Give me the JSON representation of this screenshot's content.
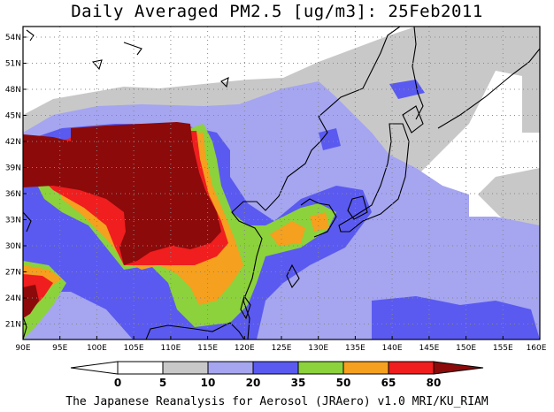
{
  "title": "Daily Averaged PM2.5 [ug/m3]: 25Feb2011",
  "footer": "The Japanese Reanalysis for Aerosol (JRAero) v1.0 MRI/KU_RIAM",
  "map": {
    "lon_labels": [
      "90E",
      "95E",
      "100E",
      "105E",
      "110E",
      "115E",
      "120E",
      "125E",
      "130E",
      "135E",
      "140E",
      "145E",
      "150E",
      "155E",
      "160E"
    ],
    "lat_labels": [
      "54N",
      "51N",
      "48N",
      "45N",
      "42N",
      "39N",
      "36N",
      "33N",
      "30N",
      "27N",
      "24N",
      "21N"
    ]
  },
  "colorbar": {
    "labels": [
      "0",
      "5",
      "10",
      "20",
      "35",
      "50",
      "65",
      "80"
    ],
    "colors": {
      "below_0": "#ffffff",
      "0_5": "#ffffff",
      "5_10": "#c8c8c8",
      "10_20": "#a5a5f0",
      "20_35": "#5a5af0",
      "35_50": "#8cd23c",
      "50_65": "#f5a01e",
      "65_80": "#f01e1e",
      "above_80": "#8c0a0a"
    }
  }
}
